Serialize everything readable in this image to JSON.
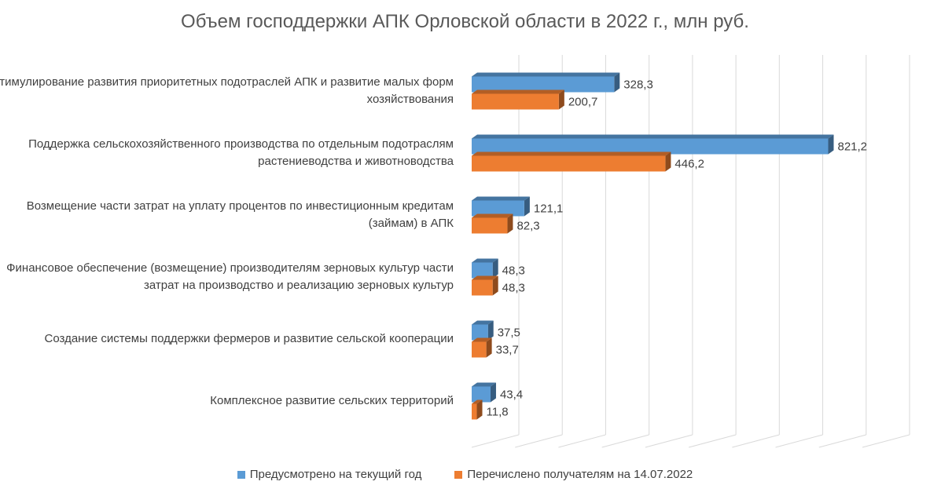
{
  "chart_data": {
    "type": "bar",
    "orientation": "horizontal",
    "title": "Объем господдержки АПК Орловской области в 2022 г., млн руб.",
    "categories": [
      "Стимулирование развития приоритетных подотраслей АПК и развитие малых форм хозяйствования",
      "Поддержка сельскохозяйственного производства по отдельным подотраслям растениеводства и животноводства",
      "Возмещение части затрат на уплату процентов по инвестиционным кредитам (займам) в АПК",
      "Финансовое обеспечение (возмещение) производителям зерновых культур части затрат на производство и реализацию зерновых культур",
      "Создание системы поддержки фермеров и развитие сельской кооперации",
      "Комплексное развитие сельских территорий"
    ],
    "series": [
      {
        "name": "Предусмотрено на текущий год",
        "values": [
          328.3,
          821.2,
          121.1,
          48.3,
          37.5,
          43.4
        ],
        "labels": [
          "328,3",
          "821,2",
          "121,1",
          "48,3",
          "37,5",
          "43,4"
        ],
        "color": "#5B9BD5"
      },
      {
        "name": "Перечислено получателям на 14.07.2022",
        "values": [
          200.7,
          446.2,
          82.3,
          48.3,
          33.7,
          11.8
        ],
        "labels": [
          "200,7",
          "446,2",
          "82,3",
          "48,3",
          "33,7",
          "11,8"
        ],
        "color": "#ED7D31"
      }
    ],
    "xlim": [
      0,
      900
    ],
    "grid": true,
    "legend_position": "bottom"
  }
}
